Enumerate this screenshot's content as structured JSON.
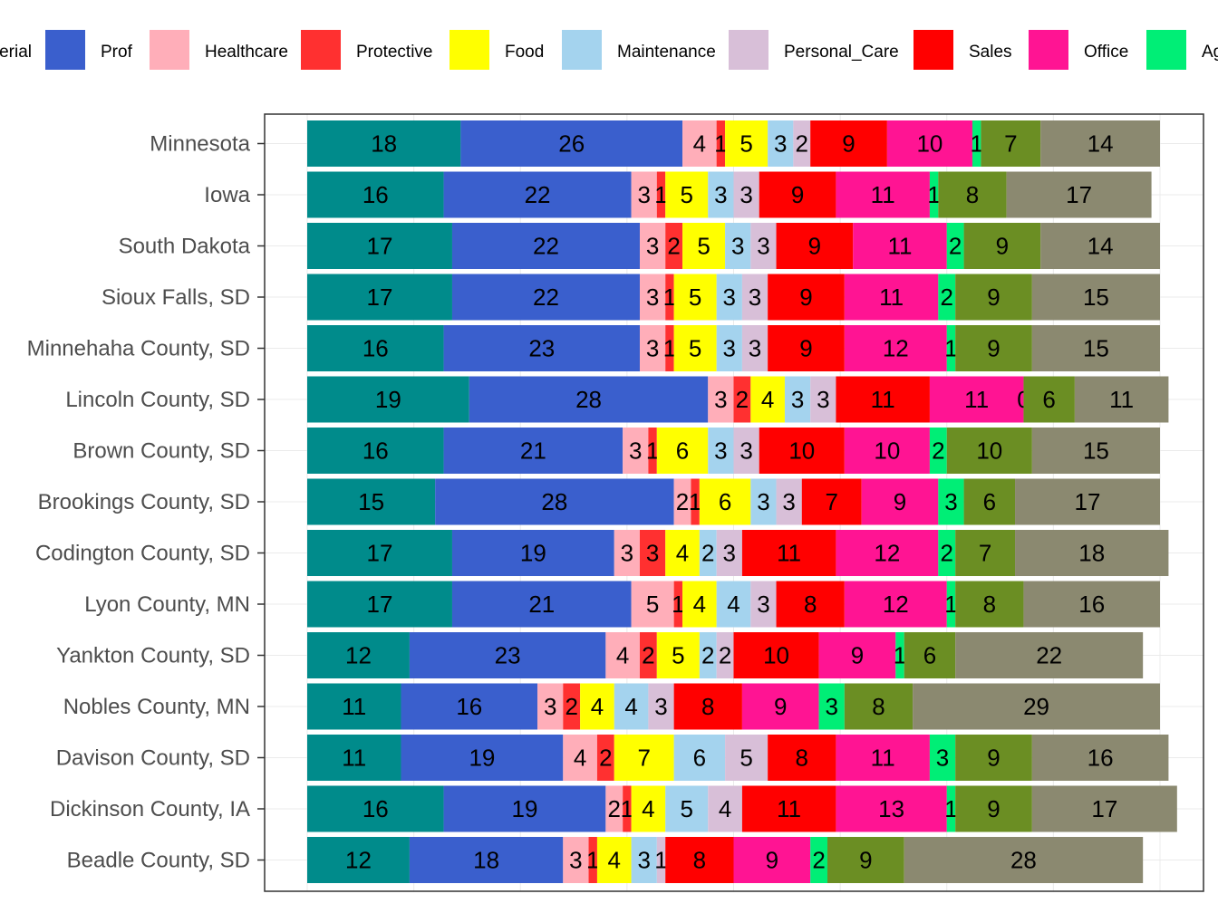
{
  "chart_data": {
    "type": "bar",
    "orientation": "horizontal",
    "stacked": true,
    "normalized": true,
    "legend_position": "top",
    "xlim": [
      0,
      100
    ],
    "grid": true,
    "categories": [
      "Minnesota",
      "Iowa",
      "South Dakota",
      "Sioux Falls, SD",
      "Minnehaha County, SD",
      "Lincoln County, SD",
      "Brown County, SD",
      "Brookings County, SD",
      "Codington County, SD",
      "Lyon County, MN",
      "Yankton County, SD",
      "Nobles County, MN",
      "Davison County, SD",
      "Dickinson County, IA",
      "Beadle County, SD"
    ],
    "legend_items": [
      {
        "label": "erial",
        "color": "#008B8B"
      },
      {
        "label": "Prof",
        "color": "#3A5FCD"
      },
      {
        "label": "Healthcare",
        "color": "#FFAEB9"
      },
      {
        "label": "Protective",
        "color": "#FF3030"
      },
      {
        "label": "Food",
        "color": "#FFFF00"
      },
      {
        "label": "Maintenance",
        "color": "#A4D3EE"
      },
      {
        "label": "Personal_Care",
        "color": "#D8BFD8"
      },
      {
        "label": "Sales",
        "color": "#FF0000"
      },
      {
        "label": "Office",
        "color": "#FF1493"
      },
      {
        "label": "Ag",
        "color": "#00EE76"
      }
    ],
    "series": [
      {
        "color": "#008B8B",
        "values": [
          18,
          16,
          17,
          17,
          16,
          19,
          16,
          15,
          17,
          17,
          12,
          11,
          11,
          16,
          12
        ]
      },
      {
        "name": "Prof",
        "color": "#3A5FCD",
        "values": [
          26,
          22,
          22,
          22,
          23,
          28,
          21,
          28,
          19,
          21,
          23,
          16,
          19,
          19,
          18
        ]
      },
      {
        "name": "Healthcare",
        "color": "#FFAEB9",
        "values": [
          4,
          3,
          3,
          3,
          3,
          3,
          3,
          2,
          3,
          5,
          4,
          3,
          4,
          2,
          3
        ]
      },
      {
        "name": "Protective",
        "color": "#FF3030",
        "values": [
          1,
          1,
          2,
          1,
          1,
          2,
          1,
          1,
          3,
          1,
          2,
          2,
          2,
          1,
          1
        ]
      },
      {
        "name": "Food",
        "color": "#FFFF00",
        "values": [
          5,
          5,
          5,
          5,
          5,
          4,
          6,
          6,
          4,
          4,
          5,
          4,
          7,
          4,
          4
        ]
      },
      {
        "name": "Maintenance",
        "color": "#A4D3EE",
        "values": [
          3,
          3,
          3,
          3,
          3,
          3,
          3,
          3,
          2,
          4,
          2,
          4,
          6,
          5,
          3
        ]
      },
      {
        "name": "Personal_Care",
        "color": "#D8BFD8",
        "values": [
          2,
          3,
          3,
          3,
          3,
          3,
          3,
          3,
          3,
          3,
          2,
          3,
          5,
          4,
          1
        ]
      },
      {
        "name": "Sales",
        "color": "#FF0000",
        "values": [
          9,
          9,
          9,
          9,
          9,
          11,
          10,
          7,
          11,
          8,
          10,
          8,
          8,
          11,
          8
        ]
      },
      {
        "name": "Office",
        "color": "#FF1493",
        "values": [
          10,
          11,
          11,
          11,
          12,
          11,
          10,
          9,
          12,
          12,
          9,
          9,
          11,
          13,
          9
        ]
      },
      {
        "name": "Ag",
        "color": "#00EE76",
        "values": [
          1,
          1,
          2,
          2,
          1,
          0,
          2,
          3,
          2,
          1,
          1,
          3,
          3,
          1,
          2
        ]
      },
      {
        "color": "#6B8E23",
        "values": [
          7,
          8,
          9,
          9,
          9,
          6,
          10,
          6,
          7,
          8,
          6,
          8,
          9,
          9,
          9
        ]
      },
      {
        "color": "#8B8970",
        "values": [
          14,
          17,
          14,
          15,
          15,
          11,
          15,
          17,
          18,
          16,
          22,
          29,
          16,
          17,
          28
        ]
      }
    ]
  }
}
